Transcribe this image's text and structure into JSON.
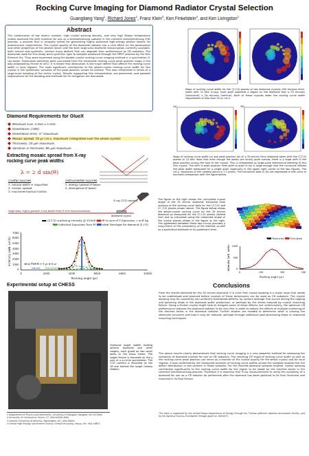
{
  "header": {
    "title": "Rocking Curve Imaging for Diamond Radiator Crystal Selection",
    "authors": [
      {
        "name": "Guangliang Yang",
        "affil": "1"
      },
      {
        "name": "Richard Jones",
        "affil": "2"
      },
      {
        "name": "Franz Klein",
        "affil": "3"
      },
      {
        "name": "Ken Finkelstein",
        "affil": "4"
      },
      {
        "name": "and Ken Livingston",
        "affil": "1"
      }
    ]
  },
  "abstract": {
    "heading": "Abstract",
    "text": "The combination of low atomic number, high crystal packing density, and very high Debye temperature makes diamond the best material for use as a bremsstrahlung radiator in the coherent bremsstrahlung (CB) process, a process that is uniquely suited for generating highly polarized high-energy photon beams for photonuclear experiments. The crystal quality of the diamond radiator has a vital effect on the polarization and other properties of the photon beam and the best large-area diamond monocrystals currently available, both natural and synthetic, contain many defects that can degrade their performance as CB radiators. The diamonds used for this study were synthetic type Ib samples produced through the HPHT process by the firm Element Six. They were examined using the double crystal rocking curve imaging method in a synchrotron X-ray beam. Dislocation densities were calculated from the measured rocking curve peak position maps in the way proposed by Ferrari et al[1]. It is shown that dislocation is one major defect that affects the rocking curve width in local regions. The most significant contribution to the whole-crystal rocking curve width for this crystal is the systematic variation of the peak position across its surface. This was interpreted in terms of a large-scale bending of the entire crystal. Results supporting this interpretation are presented, and possible explanations for the bending and methods for its mitigation are discussed."
  },
  "requirements": {
    "heading": "Diamond Requirements for GlueX",
    "items": [
      "Minimum size: 5 mm x 5 mm",
      "Orientation: [100]",
      "Orientation error: 5° maximum",
      "Mosaic spread: 20 μr r.m.s. maximum (integrated over the whole crystal)",
      "Thickness: 20 μm maximum",
      "Variation in thickness: 85 μm maximum"
    ]
  },
  "mosaic": {
    "heading": "Extracting mosaic spread from X-ray rocking curve peak widths",
    "formula": "λ = 2 d sin(θ)",
    "crystal_sources": {
      "heading": "crystal sources",
      "items": [
        "1. natural width + impurities",
        "2. mosaic spread",
        "3. macromechanical motion"
      ]
    },
    "instrumental_sources": {
      "heading": "instrumental sources",
      "items": [
        "1. energy spread of beam",
        "2. divergence of beam"
      ]
    },
    "camera_label": "X-ray CCD camera",
    "crystal_label": "diamond crystal",
    "beam_note": "large area, highly parallel X-ray beam from Si-line monochromator"
  },
  "chart_data": [
    {
      "type": "scatter",
      "x_label": "Rocking angle (μr)",
      "y_label": "Intensity (arb. units)",
      "xlim": [
        0,
        10000
      ],
      "xticks": [
        0,
        2000,
        4000,
        6000,
        8000,
        10000
      ],
      "ylim": [
        0,
        7000
      ],
      "yticks": [
        0,
        1000,
        2000,
        3000,
        4000,
        5000,
        6000,
        7000
      ],
      "grid": false,
      "legend": "upper right",
      "annotations": [
        "ideal FWHM = 5 µr ⊕ 6 µr",
        "natural",
        "instrumental"
      ],
      "series": [
        {
          "name": "(2 2 0) scattering intensity @ 15 keV",
          "type": "scatter",
          "marker": "circle",
          "color": "#000000",
          "x": [
            3000,
            3200,
            3400,
            3600,
            3800,
            4000,
            4200,
            4400,
            4600,
            4800,
            5000,
            5200,
            5400,
            5600,
            5800,
            6000,
            6200,
            6400
          ],
          "values": [
            220,
            230,
            260,
            320,
            450,
            800,
            1600,
            3200,
            5400,
            6200,
            5100,
            3000,
            1500,
            700,
            380,
            270,
            230,
            210
          ]
        },
        {
          "name": "fit to sum of 3 Gaussians + unif. bg",
          "type": "line",
          "line_style": "solid",
          "color": "#d62020",
          "x": [
            3000,
            3200,
            3400,
            3600,
            3800,
            4000,
            4200,
            4400,
            4600,
            4800,
            5000,
            5200,
            5400,
            5600,
            5800,
            6000,
            6200,
            6400
          ],
          "values": [
            210,
            225,
            255,
            330,
            470,
            820,
            1620,
            3250,
            5350,
            6150,
            5150,
            2950,
            1450,
            690,
            370,
            265,
            225,
            210
          ]
        },
        {
          "name": "individual Gaussians from fit",
          "type": "line",
          "line_style": "dashed",
          "color": "#1a9a1a",
          "x": [
            3000,
            3200,
            3400,
            3600,
            3800,
            4000,
            4200,
            4400,
            4600,
            4800,
            5000,
            5200,
            5400,
            5600,
            5800,
            6000,
            6200,
            6400
          ],
          "values": [
            0,
            0,
            0,
            0,
            10,
            120,
            700,
            2300,
            4400,
            5200,
            4200,
            2100,
            700,
            150,
            20,
            0,
            0,
            0
          ]
        },
        {
          "name": "individual Gaussians from fit",
          "type": "line",
          "line_style": "dashed",
          "color": "#1a9a1a",
          "x": [
            3000,
            3200,
            3400,
            3600,
            3800,
            4000,
            4200,
            4400,
            4600,
            4800,
            5000,
            5200,
            5400,
            5600,
            5800,
            6000,
            6200,
            6400
          ],
          "values": [
            0,
            0,
            10,
            60,
            200,
            450,
            700,
            750,
            700,
            600,
            550,
            500,
            450,
            300,
            150,
            60,
            20,
            0
          ]
        },
        {
          "name": "individual Gaussians from fit",
          "type": "line",
          "line_style": "dashed",
          "color": "#1a9a1a",
          "x": [
            3000,
            3200,
            3400,
            3600,
            3800,
            4000,
            4200,
            4400,
            4600,
            4800,
            5000,
            5200,
            5400,
            5600,
            5800,
            6000,
            6200,
            6400
          ],
          "values": [
            0,
            0,
            0,
            0,
            10,
            40,
            100,
            170,
            230,
            200,
            250,
            200,
            150,
            100,
            50,
            20,
            0,
            0
          ]
        },
        {
          "name": "ideal lineshape for diamond (2 2 0)",
          "type": "line",
          "line_style": "solid",
          "color": "#1f4fd0",
          "x": [
            4700,
            4790,
            4800,
            4810,
            4900
          ],
          "values": [
            0,
            0,
            6000,
            0,
            0
          ]
        }
      ]
    },
    {
      "type": "line",
      "x_label": "Rocking angle (μr)",
      "y_label": "intensity (arb. units)",
      "xlim": [
        0,
        300
      ],
      "xticks": [
        0,
        100,
        200,
        300
      ],
      "ylim": [
        0,
        1000
      ],
      "yticks": [
        0,
        500,
        1000
      ],
      "grid": false,
      "legend": "upper right",
      "series": [
        {
          "name": "Measured",
          "type": "line",
          "line_style": "dotted",
          "color": "#000000",
          "x": [
            0,
            25,
            50,
            75,
            100,
            125,
            150,
            175,
            200,
            225,
            250,
            275,
            300
          ],
          "values": [
            20,
            40,
            90,
            200,
            420,
            700,
            900,
            820,
            560,
            300,
            140,
            60,
            30
          ]
        },
        {
          "name": "Simulated",
          "type": "line",
          "line_style": "solid",
          "color": "#d62020",
          "x": [
            0,
            25,
            50,
            75,
            100,
            125,
            150,
            175,
            200,
            225,
            250,
            275,
            300
          ],
          "values": [
            15,
            35,
            80,
            210,
            450,
            740,
            880,
            800,
            540,
            280,
            130,
            55,
            25
          ]
        }
      ]
    }
  ],
  "maps": {
    "panel_labels": [
      "(a)",
      "(b)"
    ],
    "caption1": "Maps of rocking curve width for the (2,2,0) planes of two diamond crystals 100 microns thick, taken with 15 KeV X-rays. Each pixel subtends a region on the diamond that is 23 microns (horizontal) x 24 microns (vertical). Both of these crystals meet the rocking curve width requirement of less than 20 μr r.m.s.",
    "caption2": "Maps of rocking curve width (a) and peak position (b) of a 20 micron thick diamond taken with the (2,2,0) planes at 15 KeV. Note that even though the peaks are locally quite narrow, there is a large shift in the peak position across the face of the crystal. This is interpreted as large-scale mechanical bending of this thin crystal. The shift in peak position from pixel to pixel in (b) is large enough that the curvature inflates the peak width measured for a single pixel, especially in the upper right corner of the two figures. The r.m.s. resolution of the camera optics is 2.2 pixels. The horizontal axes in (b) are expressed in mm units to facilitate comparison with the figure below.",
    "caption3": "The figure at the right shows the calculated crystal shape of the 20 micron diamond, extracted from analysis of the rocking curve data for the (2,2,0) and (2,-2,0) planes shown above. The figure below shows the whole-crystal rocking curve for the 20 micron diamond as measured for the (2,2,0) planes (dotted line) and as simulated using the computed shape of the crystal planes shown in the figure at the right. The agreement between these two curves provides a cross-check of the consistency of the method, as well as a qualitative estimate of its systematic error."
  },
  "setup": {
    "heading": "Experimental setup at CHESS",
    "caption": "Diamond target ladder holding several diamond and other targets, each glued on two small wires to the brass frame. The target fixture is mounted on the χ axis of a 4-circle goniometer. The CCD camera is mounted on the 2θ arm behind the target (nearly hidden)."
  },
  "conclusions": {
    "heading": "Conclusions",
    "paragraphs": [
      "From the results obtained for the 20 micron diamond, it is clear that crystal warping is a major issue that needs to be understood and resolved before crystals of these dimensions can be used as CB radiators. The crystal warping may be caused by non-uniformly distributed defects, by surface damage that occurs during the lapping and polishing steps in the diamond wafer production, or perhaps by the stress induced by crystal mounting fixture. Using a thicker crystal might help to mitigate some of these effects, but unfortunately, the optimum CB performance requires the diamond radiator to be very thin in order to reduce the effects of multiple scattering of the electron beam in the diamond radiator. Further studies are needed to determine what is causing the observed curvature and how it may be reduced, perhaps through additional post-processing steps or improved mounting techniques.",
      "The above results clearly demonstrate that rocking curve imaging is a very powerful method for assessing the suitability of diamond crystals for use as CB radiators. The resulting 2D maps of rocking curve width as well as the rocking curve peak position can serve as a monitor of the crystal quality for the whole crystal and for local regions. It was confirmed by the measured variation of rocking curve widths across the samples studied that the defect distribution is non-uniform in these samples. For the thinned diamond samples studied, crystal warping contributes significantly to the rocking curve width for the region to be swept by the electron beam in the coherent bremsstrahlung process. Therefore it is essential that X-ray measurements to verify the suitability of a diamond for use as a CB radiator be performed after the diamond has been polished to its final thickness and mounted in its final fixture."
    ]
  },
  "footnotes": [
    "1 Department of Physics and Astronomy, University of Glasgow, Glasgow, UK G12 8QQ",
    "2 University of Connecticut, Storrs, CT, USA 06269-3046",
    "3 Catholic University of America, Washington, DC, USA 20064",
    "4 Cornell High Energy Synchrotron Source, Cornell University, Ithaca, NY, USA 14853"
  ],
  "acknowledgement": "This work is supported by the United States Department of Energy through the Thomas Jefferson National Accelerator Facility, and by the National Science Foundation through grant no. 0456276."
}
